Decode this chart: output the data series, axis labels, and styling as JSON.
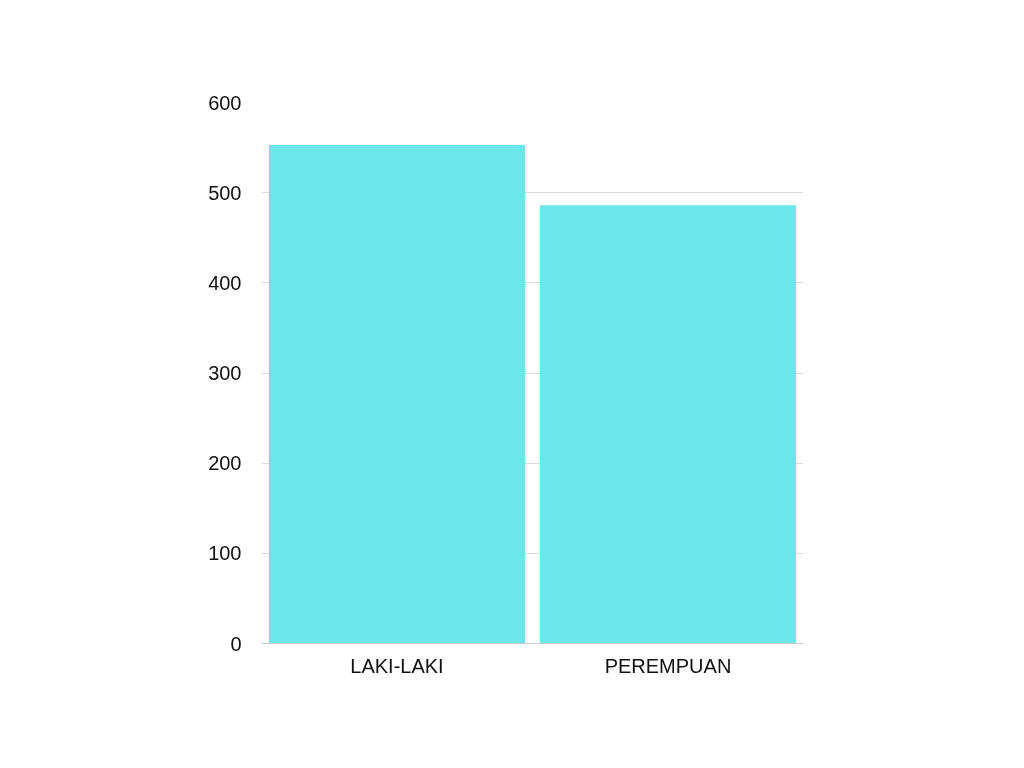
{
  "chart_data": {
    "type": "bar",
    "categories": [
      "LAKI-LAKI",
      "PEREMPUAN"
    ],
    "values": [
      553,
      486
    ],
    "color": "#6ce6e8",
    "ylim": [
      0,
      600
    ],
    "yticks": [
      0,
      100,
      200,
      300,
      400,
      500,
      600
    ],
    "grid": "y"
  }
}
